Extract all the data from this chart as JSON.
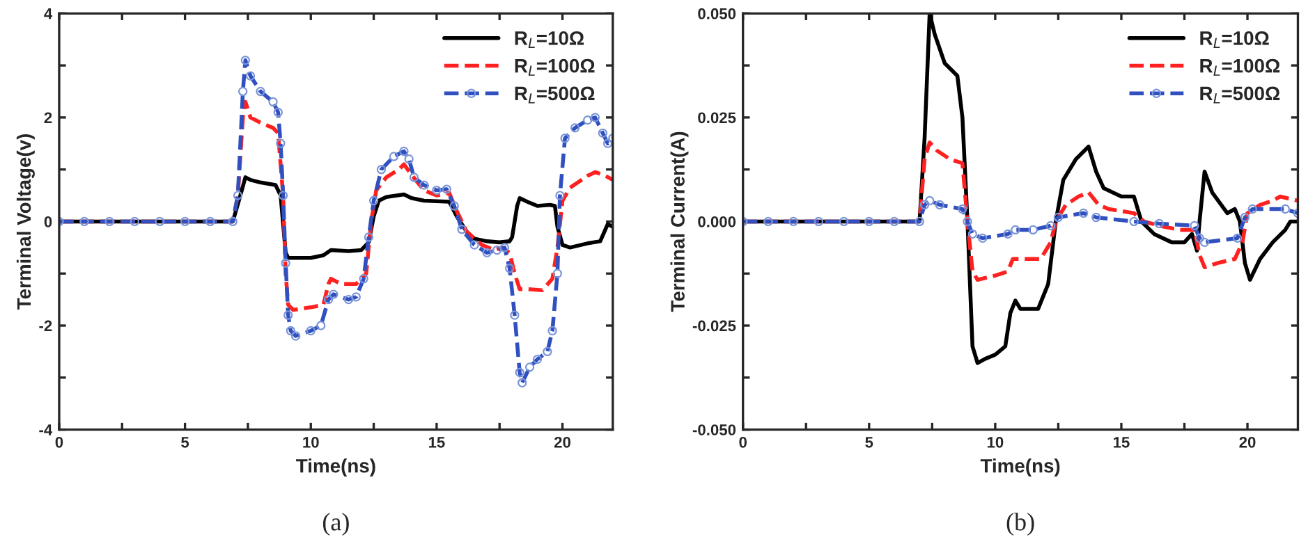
{
  "chart_data": [
    {
      "type": "line",
      "xlabel": "Time(ns)",
      "ylabel": "Terminal Voltage(v)",
      "annotations": [
        "(a)"
      ],
      "xlim": [
        0,
        22
      ],
      "ylim": [
        -4,
        4
      ],
      "xticks": [
        0,
        {
          "value": 2.5,
          "label": null
        },
        5,
        {
          "value": 7.5,
          "label": null
        },
        10,
        {
          "value": 12.5,
          "label": null
        },
        15,
        {
          "value": 17.5,
          "label": null
        },
        20
      ],
      "yticks": [
        -4,
        {
          "value": -3,
          "label": null
        },
        -2,
        {
          "value": -1,
          "label": null
        },
        0,
        {
          "value": 1,
          "label": null
        },
        2,
        {
          "value": 3,
          "label": null
        },
        4
      ],
      "legend": "top right",
      "grid": false,
      "series": [
        {
          "name": "R$_{L}$=10Ω",
          "color": "#000000",
          "line_style": "solid",
          "marker": "none",
          "x": [
            0,
            6.9,
            7.2,
            7.4,
            7.6,
            8,
            8.6,
            8.8,
            9.0,
            9.1,
            10,
            10.5,
            10.8,
            11.5,
            12,
            12.3,
            12.5,
            12.7,
            13,
            13.7,
            14,
            14.5,
            15.5,
            15.8,
            16.2,
            16.5,
            17,
            17.5,
            17.9,
            18.0,
            18.2,
            18.3,
            18.6,
            19,
            19.5,
            19.7,
            19.8,
            20,
            20.3,
            21,
            21.5,
            21.8,
            22
          ],
          "values": [
            0,
            0,
            0.5,
            0.85,
            0.8,
            0.75,
            0.7,
            0.5,
            -0.6,
            -0.7,
            -0.7,
            -0.65,
            -0.55,
            -0.57,
            -0.55,
            -0.4,
            0.1,
            0.4,
            0.47,
            0.52,
            0.45,
            0.4,
            0.38,
            0.1,
            -0.2,
            -0.33,
            -0.38,
            -0.4,
            -0.38,
            -0.3,
            0.3,
            0.45,
            0.38,
            0.3,
            0.32,
            0.3,
            -0.1,
            -0.45,
            -0.5,
            -0.42,
            -0.38,
            -0.05,
            -0.1
          ]
        },
        {
          "name": "R$_{L}$=100Ω",
          "color": "#ff2020",
          "line_style": "dashed",
          "marker": "none",
          "x": [
            0,
            6.9,
            7.1,
            7.3,
            7.4,
            7.6,
            8,
            8.5,
            8.7,
            8.9,
            9.0,
            9.1,
            9.3,
            10,
            10.5,
            10.7,
            10.8,
            11.2,
            11.8,
            12.2,
            12.4,
            12.6,
            13,
            13.5,
            13.7,
            14,
            14.5,
            15,
            15.5,
            15.8,
            16.2,
            16.8,
            17.3,
            17.6,
            17.9,
            18.1,
            18.3,
            18.6,
            19.2,
            19.6,
            19.8,
            20,
            20.3,
            21,
            21.3,
            21.7,
            22
          ],
          "values": [
            0,
            0,
            0.5,
            2.0,
            2.3,
            2.0,
            1.9,
            1.8,
            1.7,
            0.5,
            -1.0,
            -1.6,
            -1.7,
            -1.65,
            -1.6,
            -1.2,
            -1.1,
            -1.2,
            -1.2,
            -1.0,
            0,
            0.6,
            0.85,
            1.0,
            1.1,
            0.9,
            0.6,
            0.5,
            0.55,
            0.2,
            -0.2,
            -0.45,
            -0.55,
            -0.5,
            -0.6,
            -1.0,
            -1.3,
            -1.3,
            -1.32,
            -1.1,
            -0.5,
            0.4,
            0.65,
            0.88,
            0.95,
            0.88,
            0.8
          ]
        },
        {
          "name": "R$_{L}$=500Ω",
          "color": "#3050c0",
          "line_style": "dashed",
          "marker": "circle",
          "x": [
            0,
            1,
            2,
            3,
            4,
            5,
            6,
            6.9,
            7.1,
            7.3,
            7.4,
            7.6,
            8,
            8.5,
            8.7,
            8.8,
            8.9,
            9.0,
            9.1,
            9.2,
            9.4,
            10,
            10.4,
            10.7,
            10.9,
            11.5,
            11.8,
            12.1,
            12.3,
            12.5,
            12.8,
            13.3,
            13.7,
            13.9,
            14.1,
            14.5,
            15,
            15.4,
            15.7,
            16,
            16.5,
            17,
            17.4,
            17.7,
            17.9,
            18.1,
            18.3,
            18.4,
            18.7,
            19,
            19.4,
            19.6,
            19.8,
            19.9,
            20.1,
            20.5,
            21,
            21.3,
            21.6,
            21.8,
            22
          ],
          "values": [
            0,
            0,
            0,
            0,
            0,
            0,
            0,
            0,
            0.5,
            2.5,
            3.1,
            2.8,
            2.5,
            2.3,
            2.1,
            1.5,
            0.5,
            -0.8,
            -1.8,
            -2.1,
            -2.2,
            -2.1,
            -2.0,
            -1.5,
            -1.4,
            -1.5,
            -1.45,
            -1.1,
            -0.3,
            0.4,
            1.0,
            1.25,
            1.35,
            1.2,
            0.85,
            0.7,
            0.6,
            0.62,
            0.3,
            -0.15,
            -0.45,
            -0.6,
            -0.55,
            -0.5,
            -0.9,
            -1.8,
            -2.9,
            -3.1,
            -2.8,
            -2.65,
            -2.5,
            -2.1,
            -1.0,
            0.5,
            1.6,
            1.8,
            1.95,
            2.0,
            1.7,
            1.5,
            1.6
          ]
        }
      ]
    },
    {
      "type": "line",
      "xlabel": "Time(ns)",
      "ylabel": "Terminal Current(A)",
      "annotations": [
        "(b)"
      ],
      "xlim": [
        0,
        22
      ],
      "ylim": [
        -0.05,
        0.05
      ],
      "xticks": [
        0,
        {
          "value": 2.5,
          "label": null
        },
        5,
        {
          "value": 7.5,
          "label": null
        },
        10,
        {
          "value": 12.5,
          "label": null
        },
        15,
        {
          "value": 17.5,
          "label": null
        },
        20
      ],
      "yticks": [
        {
          "value": -0.05,
          "label": "-0.050"
        },
        {
          "value": -0.0375,
          "label": null
        },
        {
          "value": -0.025,
          "label": "-0.025"
        },
        {
          "value": -0.0125,
          "label": null
        },
        {
          "value": 0,
          "label": "0.000"
        },
        {
          "value": 0.0125,
          "label": null
        },
        {
          "value": 0.025,
          "label": "0.025"
        },
        {
          "value": 0.0375,
          "label": null
        },
        {
          "value": 0.05,
          "label": "0.050"
        }
      ],
      "legend": "top right",
      "grid": false,
      "series": [
        {
          "name": "R$_{L}$=10Ω",
          "color": "#000000",
          "line_style": "solid",
          "marker": "none",
          "x": [
            0,
            7.0,
            7.2,
            7.4,
            7.6,
            8,
            8.5,
            8.7,
            8.9,
            9.1,
            9.3,
            9.6,
            10,
            10.4,
            10.6,
            10.8,
            11,
            11.7,
            12.1,
            12.4,
            12.7,
            13.2,
            13.7,
            14,
            14.3,
            15,
            15.5,
            15.8,
            16.3,
            17,
            17.5,
            17.8,
            18,
            18.1,
            18.3,
            18.6,
            19.2,
            19.5,
            19.7,
            19.9,
            20.1,
            20.5,
            21,
            21.5,
            21.7,
            22
          ],
          "values": [
            0,
            0,
            0.02,
            0.05,
            0.045,
            0.038,
            0.035,
            0.025,
            0.0,
            -0.03,
            -0.034,
            -0.033,
            -0.032,
            -0.03,
            -0.022,
            -0.019,
            -0.021,
            -0.021,
            -0.015,
            0.0,
            0.01,
            0.015,
            0.018,
            0.012,
            0.008,
            0.006,
            0.006,
            0.0,
            -0.003,
            -0.005,
            -0.005,
            -0.003,
            -0.007,
            0.0,
            0.012,
            0.007,
            0.002,
            0.003,
            0.0,
            -0.01,
            -0.014,
            -0.009,
            -0.005,
            -0.002,
            0.0,
            0.0
          ]
        },
        {
          "name": "R$_{L}$=100Ω",
          "color": "#ff2020",
          "line_style": "dashed",
          "marker": "none",
          "x": [
            0,
            7,
            7.2,
            7.4,
            7.7,
            8.2,
            8.7,
            8.9,
            9.1,
            9.3,
            10,
            10.5,
            10.7,
            11,
            11.8,
            12.2,
            12.4,
            12.8,
            13.3,
            13.7,
            14.1,
            14.5,
            15.5,
            15.9,
            16.5,
            17.3,
            17.9,
            18.1,
            18.3,
            18.8,
            19.5,
            19.8,
            20,
            20.5,
            21,
            21.3,
            22
          ],
          "values": [
            0,
            0,
            0.015,
            0.019,
            0.017,
            0.015,
            0.014,
            0.0,
            -0.012,
            -0.014,
            -0.013,
            -0.012,
            -0.009,
            -0.009,
            -0.009,
            -0.005,
            0.0,
            0.004,
            0.006,
            0.007,
            0.004,
            0.003,
            0.002,
            0.0,
            -0.001,
            -0.002,
            -0.002,
            -0.008,
            -0.011,
            -0.01,
            -0.009,
            -0.005,
            0.002,
            0.004,
            0.005,
            0.006,
            0.005
          ]
        },
        {
          "name": "R$_{L}$=500Ω",
          "color": "#3050c0",
          "line_style": "dashed",
          "marker": "circle",
          "x": [
            0,
            1,
            2,
            3,
            4,
            5,
            6,
            7,
            7.2,
            7.4,
            7.8,
            8.7,
            8.9,
            9.1,
            9.5,
            10.5,
            10.8,
            11.5,
            12.2,
            12.5,
            13.5,
            14,
            15.5,
            16.5,
            17.9,
            18.1,
            18.3,
            19.6,
            19.9,
            20.2,
            21.5,
            22
          ],
          "values": [
            0,
            0,
            0,
            0,
            0,
            0,
            0,
            0,
            0.004,
            0.005,
            0.004,
            0.003,
            0.0,
            -0.003,
            -0.004,
            -0.003,
            -0.002,
            -0.002,
            -0.001,
            0.001,
            0.002,
            0.001,
            0.0,
            -0.0005,
            -0.001,
            -0.004,
            -0.005,
            -0.004,
            0.001,
            0.003,
            0.003,
            0.002
          ]
        }
      ]
    }
  ]
}
